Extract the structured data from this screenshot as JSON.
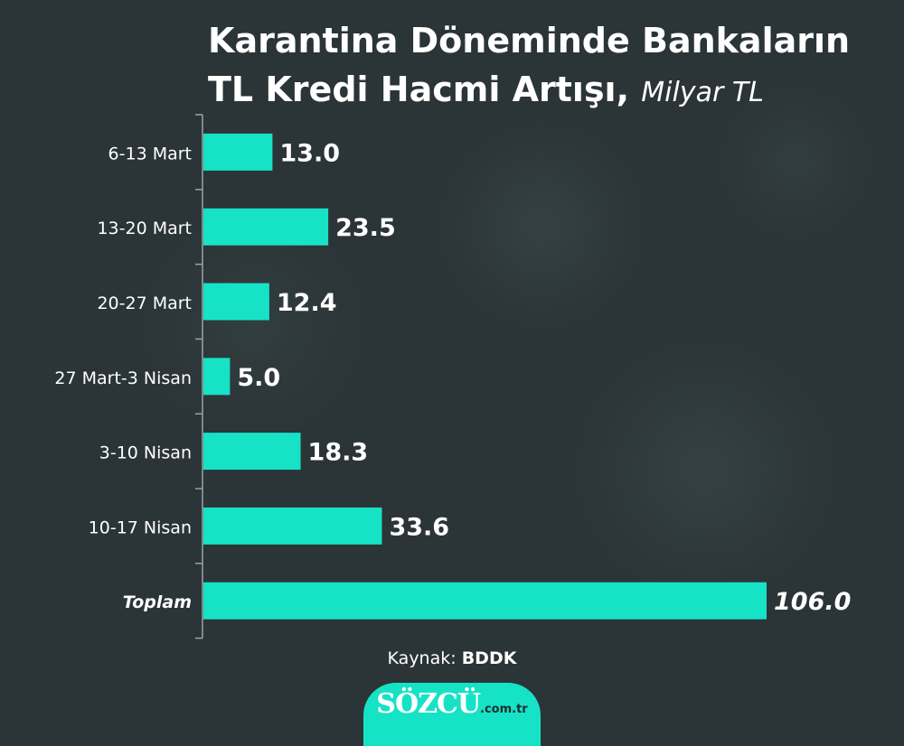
{
  "header": {
    "title_line1": "Karantina Döneminde Bankaların",
    "title_line2": "TL Kredi Hacmi Artışı,",
    "title_unit": "Milyar TL"
  },
  "colors": {
    "bar": "#16e2c6",
    "background": "#2b3436",
    "text": "#ffffff",
    "axis": "#9aa3a5"
  },
  "chart_data": {
    "type": "bar",
    "orientation": "horizontal",
    "categories": [
      "6-13 Mart",
      "13-20 Mart",
      "20-27 Mart",
      "27 Mart-3 Nisan",
      "3-10 Nisan",
      "10-17 Nisan",
      "Toplam"
    ],
    "values": [
      13.0,
      23.5,
      12.4,
      5.0,
      18.3,
      33.6,
      106.0
    ],
    "value_labels": [
      "13.0",
      "23.5",
      "12.4",
      "5.0",
      "18.3",
      "33.6",
      "106.0"
    ],
    "xlim": [
      0,
      106.0
    ],
    "grid": false
  },
  "footer": {
    "source_label": "Kaynak:",
    "source_name": "BDDK"
  },
  "logo": {
    "name": "SÖZCÜ",
    "tld": ".com.tr"
  }
}
